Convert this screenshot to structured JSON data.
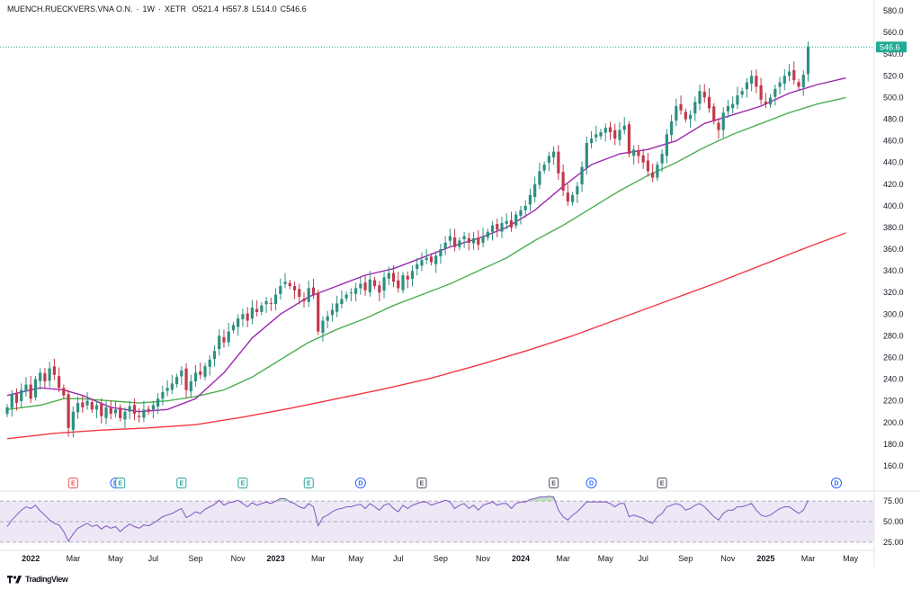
{
  "header": {
    "symbol": "MUENCH.RUECKVERS.VNA O.N.",
    "interval": "1W",
    "exchange": "XETR",
    "open": "O521.4",
    "high": "H557.8",
    "low": "L514.0",
    "close": "C546.6"
  },
  "footer": {
    "brand": "TradingView",
    "logo": "tradingview-logo-icon"
  },
  "colors": {
    "up": "#26a69a",
    "down": "#ef5350",
    "down_body": "#c2394b",
    "up_body": "#2e8f80",
    "ma_short": "#9c27b0",
    "ma_mid": "#4caf50",
    "ma_long": "#f23645",
    "rsi_line": "#7e57c2",
    "rsi_fill": "#ede7f6",
    "last_price": "#22ab94"
  },
  "chart_data": {
    "type": "candlestick",
    "price_axis": {
      "ylim": [
        150,
        590
      ],
      "ticks": [
        "580.0",
        "560.0",
        "540.0",
        "520.0",
        "500.0",
        "480.0",
        "460.0",
        "440.0",
        "420.0",
        "400.0",
        "380.0",
        "360.0",
        "340.0",
        "320.0",
        "300.0",
        "280.0",
        "260.0",
        "240.0",
        "220.0",
        "200.0",
        "180.0",
        "160.0"
      ]
    },
    "last_price_label": "546.6",
    "x_axis": {
      "range_weeks": [
        0,
        178
      ],
      "ticks": [
        {
          "label": "2022",
          "week": 5,
          "year": true
        },
        {
          "label": "Mar",
          "week": 14
        },
        {
          "label": "May",
          "week": 23
        },
        {
          "label": "Jul",
          "week": 31
        },
        {
          "label": "Sep",
          "week": 40
        },
        {
          "label": "Nov",
          "week": 49
        },
        {
          "label": "2023",
          "week": 57,
          "year": true
        },
        {
          "label": "Mar",
          "week": 66
        },
        {
          "label": "May",
          "week": 74
        },
        {
          "label": "Jul",
          "week": 83
        },
        {
          "label": "Sep",
          "week": 92
        },
        {
          "label": "Nov",
          "week": 101
        },
        {
          "label": "2024",
          "week": 109,
          "year": true
        },
        {
          "label": "Mar",
          "week": 118
        },
        {
          "label": "May",
          "week": 127
        },
        {
          "label": "Jul",
          "week": 135
        },
        {
          "label": "Sep",
          "week": 144
        },
        {
          "label": "Nov",
          "week": 153
        },
        {
          "label": "2025",
          "week": 161,
          "year": true
        },
        {
          "label": "Mar",
          "week": 170
        },
        {
          "label": "May",
          "week": 179
        }
      ]
    },
    "closes": [
      214,
      226,
      218,
      230,
      235,
      222,
      240,
      246,
      238,
      250,
      244,
      232,
      225,
      195,
      210,
      218,
      214,
      220,
      212,
      216,
      206,
      214,
      208,
      212,
      204,
      210,
      215,
      208,
      205,
      212,
      210,
      216,
      222,
      228,
      232,
      236,
      242,
      248,
      230,
      238,
      246,
      244,
      252,
      258,
      266,
      280,
      274,
      284,
      290,
      296,
      300,
      294,
      306,
      302,
      308,
      312,
      310,
      318,
      326,
      330,
      326,
      322,
      316,
      312,
      324,
      318,
      284,
      294,
      298,
      304,
      310,
      314,
      318,
      320,
      324,
      328,
      322,
      332,
      326,
      320,
      334,
      338,
      330,
      324,
      336,
      332,
      340,
      346,
      350,
      352,
      348,
      354,
      360,
      366,
      372,
      362,
      368,
      372,
      366,
      370,
      364,
      372,
      376,
      382,
      378,
      384,
      386,
      380,
      392,
      396,
      400,
      410,
      420,
      432,
      438,
      446,
      450,
      430,
      414,
      404,
      410,
      418,
      436,
      458,
      462,
      466,
      468,
      472,
      468,
      462,
      470,
      474,
      448,
      452,
      446,
      440,
      432,
      426,
      438,
      448,
      466,
      478,
      492,
      488,
      480,
      484,
      496,
      506,
      500,
      490,
      478,
      470,
      486,
      492,
      494,
      502,
      506,
      514,
      520,
      510,
      498,
      494,
      500,
      508,
      514,
      520,
      524,
      516,
      510,
      521,
      546.6
    ],
    "ma_short": [
      [
        0,
        225
      ],
      [
        7,
        232
      ],
      [
        12,
        230
      ],
      [
        16,
        225
      ],
      [
        22,
        214
      ],
      [
        28,
        210
      ],
      [
        34,
        212
      ],
      [
        40,
        222
      ],
      [
        46,
        246
      ],
      [
        52,
        278
      ],
      [
        58,
        300
      ],
      [
        64,
        316
      ],
      [
        70,
        326
      ],
      [
        76,
        336
      ],
      [
        82,
        342
      ],
      [
        88,
        352
      ],
      [
        94,
        362
      ],
      [
        100,
        370
      ],
      [
        106,
        380
      ],
      [
        112,
        396
      ],
      [
        118,
        418
      ],
      [
        124,
        438
      ],
      [
        130,
        448
      ],
      [
        136,
        452
      ],
      [
        142,
        460
      ],
      [
        148,
        476
      ],
      [
        154,
        484
      ],
      [
        160,
        492
      ],
      [
        166,
        504
      ],
      [
        172,
        512
      ],
      [
        178,
        518
      ]
    ],
    "ma_mid": [
      [
        0,
        212
      ],
      [
        7,
        216
      ],
      [
        12,
        222
      ],
      [
        16,
        222
      ],
      [
        22,
        220
      ],
      [
        28,
        218
      ],
      [
        34,
        220
      ],
      [
        40,
        224
      ],
      [
        46,
        230
      ],
      [
        52,
        242
      ],
      [
        58,
        258
      ],
      [
        64,
        274
      ],
      [
        70,
        286
      ],
      [
        76,
        296
      ],
      [
        82,
        308
      ],
      [
        88,
        318
      ],
      [
        94,
        328
      ],
      [
        100,
        340
      ],
      [
        106,
        352
      ],
      [
        112,
        368
      ],
      [
        118,
        382
      ],
      [
        124,
        398
      ],
      [
        130,
        414
      ],
      [
        136,
        428
      ],
      [
        142,
        440
      ],
      [
        148,
        454
      ],
      [
        154,
        466
      ],
      [
        160,
        476
      ],
      [
        166,
        486
      ],
      [
        172,
        494
      ],
      [
        178,
        500
      ]
    ],
    "ma_long": [
      [
        0,
        185
      ],
      [
        10,
        190
      ],
      [
        20,
        193
      ],
      [
        30,
        195
      ],
      [
        40,
        198
      ],
      [
        50,
        205
      ],
      [
        60,
        213
      ],
      [
        70,
        222
      ],
      [
        80,
        231
      ],
      [
        90,
        241
      ],
      [
        100,
        253
      ],
      [
        110,
        266
      ],
      [
        120,
        280
      ],
      [
        130,
        296
      ],
      [
        140,
        312
      ],
      [
        150,
        328
      ],
      [
        160,
        345
      ],
      [
        170,
        362
      ],
      [
        178,
        375
      ]
    ],
    "rsi": {
      "levels": [
        {
          "label": "75.00",
          "value": 75
        },
        {
          "label": "50.00",
          "value": 50
        },
        {
          "label": "25.00",
          "value": 25
        }
      ],
      "ylim": [
        15,
        85
      ],
      "values": [
        44,
        52,
        58,
        64,
        68,
        66,
        70,
        63,
        58,
        52,
        48,
        46,
        38,
        26,
        35,
        42,
        45,
        48,
        44,
        46,
        41,
        45,
        42,
        44,
        38,
        43,
        47,
        44,
        42,
        46,
        45,
        48,
        52,
        56,
        58,
        60,
        63,
        66,
        55,
        58,
        62,
        60,
        65,
        68,
        71,
        76,
        70,
        73,
        74,
        76,
        72,
        68,
        73,
        70,
        72,
        74,
        72,
        75,
        78,
        78,
        74,
        72,
        68,
        66,
        72,
        68,
        45,
        55,
        58,
        62,
        65,
        66,
        68,
        68,
        70,
        71,
        66,
        72,
        68,
        64,
        70,
        72,
        66,
        62,
        70,
        66,
        70,
        72,
        74,
        74,
        70,
        72,
        74,
        76,
        74,
        66,
        70,
        72,
        66,
        70,
        64,
        70,
        72,
        74,
        70,
        72,
        72,
        66,
        72,
        74,
        74,
        77,
        78,
        80,
        80,
        81,
        80,
        64,
        56,
        52,
        58,
        62,
        68,
        74,
        74,
        74,
        74,
        74,
        72,
        68,
        72,
        72,
        56,
        58,
        56,
        54,
        50,
        48,
        56,
        60,
        68,
        70,
        72,
        70,
        64,
        66,
        70,
        72,
        68,
        62,
        56,
        52,
        60,
        64,
        64,
        68,
        68,
        70,
        72,
        64,
        58,
        56,
        58,
        62,
        66,
        68,
        68,
        64,
        60,
        64,
        76
      ]
    },
    "events": [
      {
        "letter": "E",
        "week": 14,
        "kind": "earnings-past"
      },
      {
        "letter": "D",
        "week": 23,
        "kind": "dividend"
      },
      {
        "letter": "E",
        "week": 24,
        "kind": "earnings"
      },
      {
        "letter": "E",
        "week": 37,
        "kind": "earnings"
      },
      {
        "letter": "E",
        "week": 50,
        "kind": "earnings"
      },
      {
        "letter": "E",
        "week": 64,
        "kind": "earnings"
      },
      {
        "letter": "D",
        "week": 75,
        "kind": "dividend"
      },
      {
        "letter": "E",
        "week": 88,
        "kind": "earnings-neutral"
      },
      {
        "letter": "E",
        "week": 116,
        "kind": "earnings-neutral"
      },
      {
        "letter": "D",
        "week": 124,
        "kind": "dividend"
      },
      {
        "letter": "E",
        "week": 139,
        "kind": "earnings-neutral"
      },
      {
        "letter": "D",
        "week": 176,
        "kind": "dividend"
      }
    ]
  }
}
